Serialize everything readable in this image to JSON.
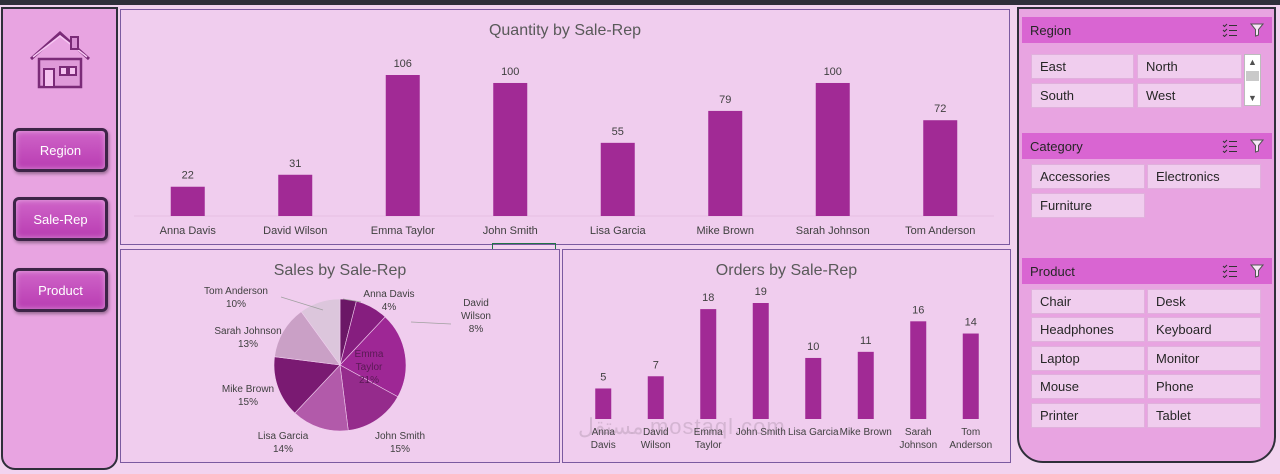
{
  "nav": {
    "home_icon": "home-icon",
    "buttons": [
      "Region",
      "Sale-Rep",
      "Product"
    ]
  },
  "quantity_chart": {
    "title": "Quantity by Sale-Rep"
  },
  "sales_chart": {
    "title": "Sales by Sale-Rep"
  },
  "orders_chart": {
    "title": "Orders by Sale-Rep"
  },
  "chart_data": [
    {
      "type": "bar",
      "title": "Quantity by Sale-Rep",
      "categories": [
        "Anna Davis",
        "David Wilson",
        "Emma Taylor",
        "John Smith",
        "Lisa Garcia",
        "Mike Brown",
        "Sarah Johnson",
        "Tom Anderson"
      ],
      "values": [
        22,
        31,
        106,
        100,
        55,
        79,
        100,
        72
      ],
      "ylim": [
        0,
        106
      ],
      "bar_color": "#a12a95"
    },
    {
      "type": "pie",
      "title": "Sales by Sale-Rep",
      "categories": [
        "Anna Davis",
        "David Wilson",
        "Emma Taylor",
        "John Smith",
        "Lisa Garcia",
        "Mike Brown",
        "Sarah Johnson",
        "Tom Anderson"
      ],
      "values": [
        4,
        8,
        21,
        15,
        14,
        15,
        13,
        10
      ],
      "labels": [
        "4%",
        "8%",
        "21%",
        "15%",
        "14%",
        "15%",
        "13%",
        "10%"
      ],
      "colors": [
        "#6b1766",
        "#861e7f",
        "#9e2795",
        "#952b8c",
        "#b25aaa",
        "#7a1a72",
        "#caa0c6",
        "#dcc6dc"
      ]
    },
    {
      "type": "bar",
      "title": "Orders by Sale-Rep",
      "categories": [
        "Anna Davis",
        "David Wilson",
        "Emma Taylor",
        "John Smith",
        "Lisa Garcia",
        "Mike Brown",
        "Sarah Johnson",
        "Tom Anderson"
      ],
      "values": [
        5,
        7,
        18,
        19,
        10,
        11,
        16,
        14
      ],
      "ylim": [
        0,
        19
      ],
      "bar_color": "#a12a95"
    }
  ],
  "slicers": {
    "region": {
      "title": "Region",
      "items": [
        "East",
        "North",
        "South",
        "West"
      ]
    },
    "category": {
      "title": "Category",
      "items": [
        "Accessories",
        "Electronics",
        "Furniture"
      ]
    },
    "product": {
      "title": "Product",
      "items": [
        "Chair",
        "Desk",
        "Headphones",
        "Keyboard",
        "Laptop",
        "Monitor",
        "Mouse",
        "Phone",
        "Printer",
        "Tablet"
      ]
    },
    "multi_select_icon": "multi-select-icon",
    "clear_filter_icon": "clear-filter-icon",
    "scroll_up": "▲",
    "scroll_down": "▼"
  },
  "watermark": "مستقل mostaql.com",
  "colors": {
    "background": "#f2d3ef",
    "panel": "#f0cdee",
    "accent": "#a12a95",
    "slicer_header": "#d965d2"
  }
}
